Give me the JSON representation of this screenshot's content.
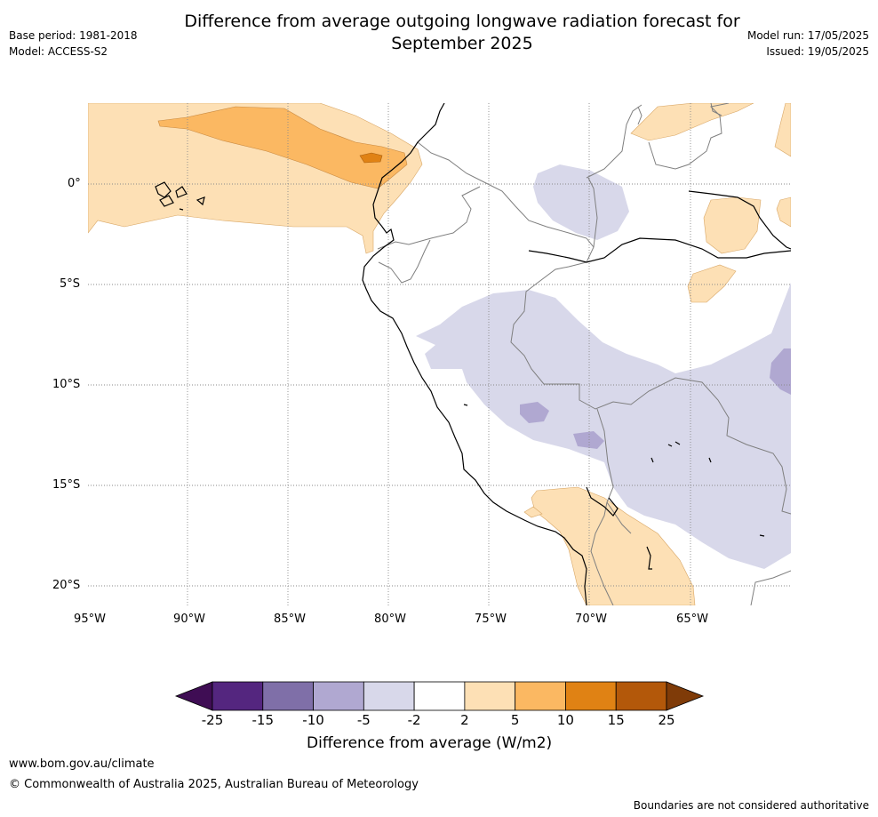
{
  "header": {
    "title_line1": "Difference from average outgoing longwave radiation forecast for",
    "title_line2": "September 2025",
    "base_period": "Base period: 1981-2018",
    "model": "Model: ACCESS-S2",
    "model_run": "Model run: 17/05/2025",
    "issued": "Issued: 19/05/2025"
  },
  "map": {
    "lat_labels": [
      "0°",
      "5°S",
      "10°S",
      "15°S",
      "20°S"
    ],
    "lon_labels": [
      "95°W",
      "90°W",
      "85°W",
      "80°W",
      "75°W",
      "70°W",
      "65°W"
    ],
    "extent": {
      "lon": [
        -95,
        -60.5
      ],
      "lat": [
        4,
        -21
      ]
    }
  },
  "colorbar": {
    "ticks": [
      "-25",
      "-15",
      "-10",
      "-5",
      "-2",
      "2",
      "5",
      "10",
      "15",
      "25"
    ],
    "colors": [
      "#3f0d54",
      "#54267f",
      "#7f6fa8",
      "#b0a8d1",
      "#d8d8ea",
      "#ffffff",
      "#fde0b5",
      "#fbb862",
      "#e08214",
      "#b3580a",
      "#7f3b08"
    ],
    "title": "Difference from average (W/m2)"
  },
  "footer": {
    "url": "www.bom.gov.au/climate",
    "copyright": "© Commonwealth of Australia 2025, Australian Bureau of Meteorology",
    "disclaimer": "Boundaries are not considered authoritative"
  }
}
